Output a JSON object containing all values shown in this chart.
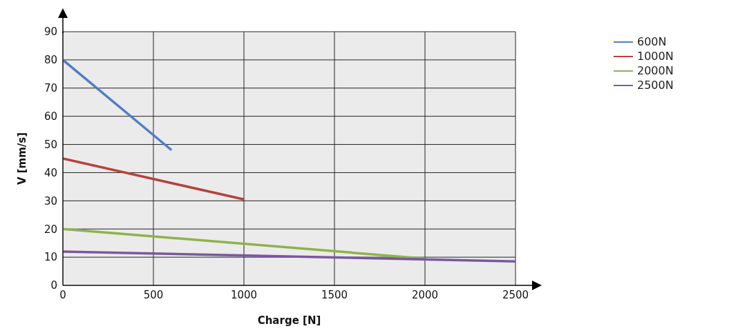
{
  "chart_data": {
    "type": "line",
    "xlabel": "Charge [N]",
    "ylabel": "V [mm/s]",
    "xlim": [
      0,
      2500
    ],
    "xticks": [
      0,
      500,
      1000,
      1500,
      2000,
      2500
    ],
    "ylim": [
      0,
      90
    ],
    "yticks": [
      0,
      10,
      20,
      30,
      40,
      50,
      60,
      70,
      80,
      90
    ],
    "grid": true,
    "legend": "top right",
    "marker": "none",
    "line_style": "solid",
    "series": [
      {
        "name": "600N",
        "color": "#4f7ec6",
        "x": [
          0,
          600
        ],
        "values": [
          80,
          48
        ]
      },
      {
        "name": "1000N",
        "color": "#b5423c",
        "x": [
          0,
          1000
        ],
        "values": [
          45,
          30.5
        ]
      },
      {
        "name": "2000N",
        "color": "#8fb24b",
        "x": [
          0,
          2000
        ],
        "values": [
          20,
          9.5
        ]
      },
      {
        "name": "2500N",
        "color": "#7a58a0",
        "x": [
          0,
          2500
        ],
        "values": [
          12,
          8.5
        ]
      }
    ]
  }
}
